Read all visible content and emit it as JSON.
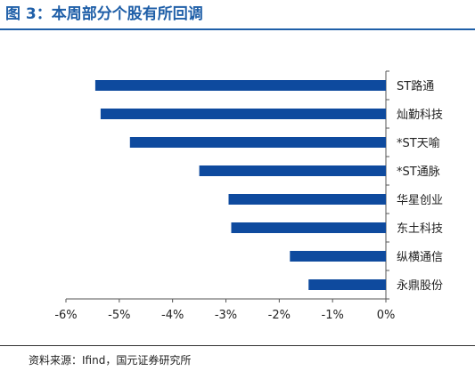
{
  "header": {
    "title": "图 3：本周部分个股有所回调"
  },
  "footer": {
    "source": "资料来源：Ifind，国元证券研究所"
  },
  "colors": {
    "accent": "#1f5fa8",
    "bar": "#0e4a9e"
  },
  "chart_data": {
    "type": "bar",
    "orientation": "horizontal",
    "title": "",
    "xlabel": "",
    "ylabel": "",
    "categories": [
      "ST路通",
      "灿勤科技",
      "*ST天喻",
      "*ST通脉",
      "华星创业",
      "东土科技",
      "纵横通信",
      "永鼎股份"
    ],
    "values": [
      -5.45,
      -5.35,
      -4.8,
      -3.5,
      -2.95,
      -2.9,
      -1.8,
      -1.45
    ],
    "xlim": [
      -6,
      0
    ],
    "xticks": [
      -6,
      -5,
      -4,
      -3,
      -2,
      -1,
      0
    ],
    "xtick_labels": [
      "-6%",
      "-5%",
      "-4%",
      "-3%",
      "-2%",
      "-1%",
      "0%"
    ],
    "category_axis_position": "right",
    "grid": false,
    "legend": "none"
  }
}
